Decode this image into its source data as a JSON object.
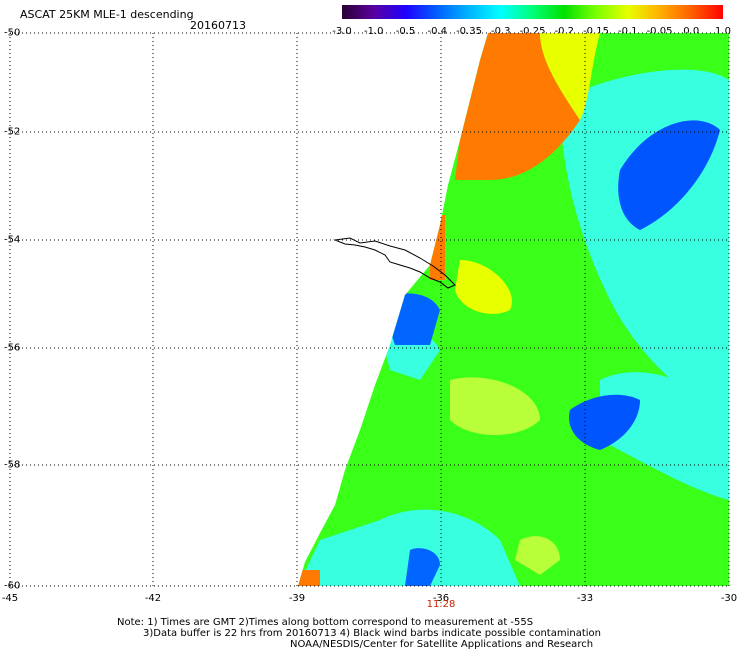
{
  "header": {
    "title": "ASCAT 25KM MLE-1 descending",
    "date": "20160713"
  },
  "colorbar": {
    "labels": [
      "-3.0",
      "-1.0",
      "-0.5",
      "-0.4",
      "-0.35",
      "-0.3",
      "-0.25",
      "-0.2",
      "-0.15",
      "-0.1",
      "-0.05",
      "0.0",
      "1.0"
    ],
    "colors": [
      "#2a0033",
      "#5a00a0",
      "#2000ff",
      "#0060ff",
      "#00b4ff",
      "#00ffff",
      "#00ff78",
      "#00e000",
      "#7aff00",
      "#e8ff00",
      "#ffb000",
      "#ff6000",
      "#ff0000"
    ]
  },
  "axes": {
    "lat_labels": [
      "-50",
      "-52",
      "-54",
      "-56",
      "-58",
      "-60"
    ],
    "lon_labels": [
      "-45",
      "-42",
      "-39",
      "-36",
      "-33",
      "-30"
    ],
    "time_label": "11:28"
  },
  "footer": {
    "note1": "Note: 1) Times are GMT 2)Times along bottom correspond to measurement at -55S",
    "note2": "3)Data buffer is 22 hrs from 20160713 4) Black wind barbs indicate possible contamination",
    "credit": "NOAA/NESDIS/Center for Satellite Applications and Research"
  },
  "colors": {
    "swath_green": "#39ff19",
    "swath_cyan": "#38ffe0",
    "swath_blue": "#0055ff",
    "swath_orange": "#ff7a00",
    "swath_yellow": "#e8ff00",
    "grid": "#000000"
  }
}
